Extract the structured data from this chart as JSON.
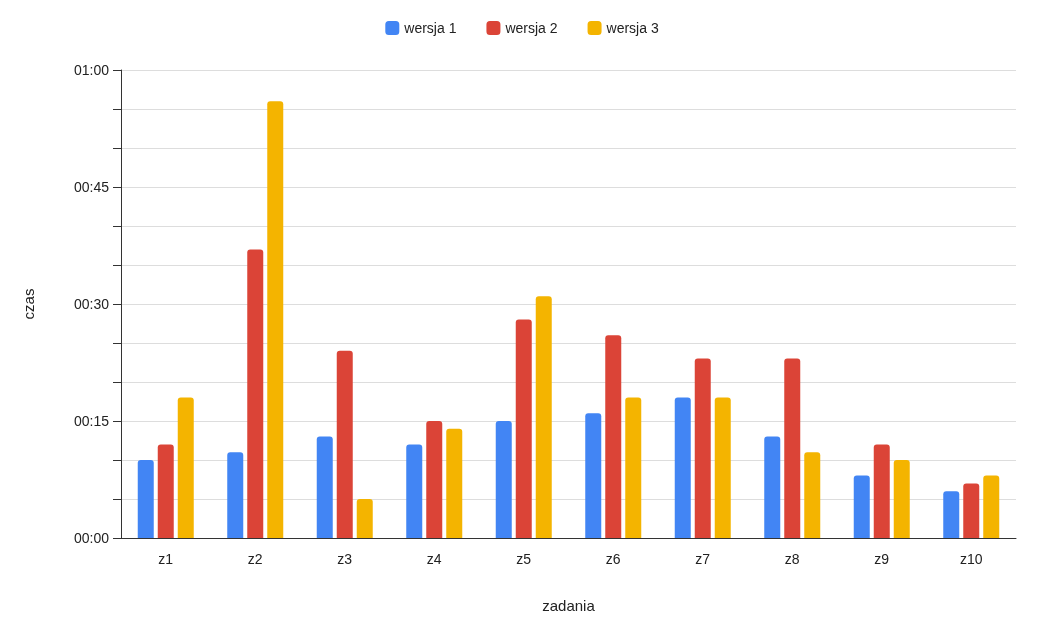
{
  "chart_data": {
    "type": "bar",
    "xlabel": "zadania",
    "ylabel": "czas",
    "categories": [
      "z1",
      "z2",
      "z3",
      "z4",
      "z5",
      "z6",
      "z7",
      "z8",
      "z9",
      "z10"
    ],
    "series": [
      {
        "name": "wersja 1",
        "color": "#4285f4",
        "values": [
          10,
          11,
          13,
          12,
          15,
          16,
          18,
          13,
          8,
          6
        ]
      },
      {
        "name": "wersja 2",
        "color": "#db4437",
        "values": [
          12,
          37,
          24,
          15,
          28,
          26,
          23,
          23,
          12,
          7
        ]
      },
      {
        "name": "wersja 3",
        "color": "#f4b400",
        "values": [
          18,
          56,
          5,
          14,
          31,
          18,
          18,
          11,
          10,
          8
        ]
      }
    ],
    "ylim": [
      0,
      60
    ],
    "yticks": [
      {
        "value": 0,
        "label": "00:00"
      },
      {
        "value": 5,
        "label": null
      },
      {
        "value": 10,
        "label": null
      },
      {
        "value": 15,
        "label": "00:15"
      },
      {
        "value": 20,
        "label": null
      },
      {
        "value": 25,
        "label": null
      },
      {
        "value": 30,
        "label": "00:30"
      },
      {
        "value": 35,
        "label": null
      },
      {
        "value": 40,
        "label": null
      },
      {
        "value": 45,
        "label": "00:45"
      },
      {
        "value": 50,
        "label": null
      },
      {
        "value": 55,
        "label": null
      },
      {
        "value": 60,
        "label": "01:00"
      }
    ],
    "grid": "y",
    "legend": "top"
  }
}
